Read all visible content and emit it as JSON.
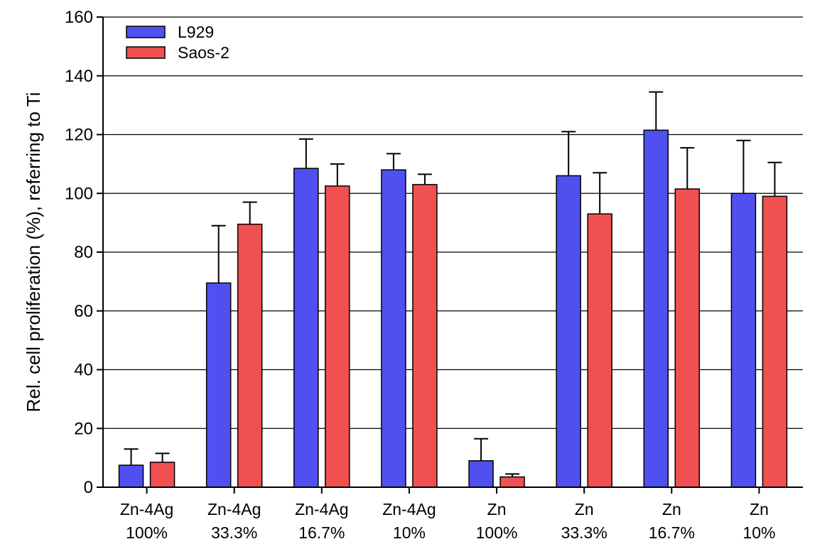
{
  "chart_data": {
    "type": "bar",
    "title": "",
    "xlabel": "",
    "ylabel": "Rel. cell proliferation  (%), referring to Ti",
    "ylim": [
      0,
      160
    ],
    "yticks": [
      0,
      20,
      40,
      60,
      80,
      100,
      120,
      140,
      160
    ],
    "grid": true,
    "legend_position": "top-left",
    "categories": [
      {
        "line1": "Zn-4Ag",
        "line2": "100%"
      },
      {
        "line1": "Zn-4Ag",
        "line2": "33.3%"
      },
      {
        "line1": "Zn-4Ag",
        "line2": "16.7%"
      },
      {
        "line1": "Zn-4Ag",
        "line2": "10%"
      },
      {
        "line1": "Zn",
        "line2": "100%"
      },
      {
        "line1": "Zn",
        "line2": "33.3%"
      },
      {
        "line1": "Zn",
        "line2": "16.7%"
      },
      {
        "line1": "Zn",
        "line2": "10%"
      }
    ],
    "series": [
      {
        "name": "L929",
        "color": "#5050F0",
        "values": [
          7.5,
          69.5,
          108.5,
          108,
          9,
          106,
          121.5,
          100
        ],
        "errors": [
          5.5,
          19.5,
          10,
          5.5,
          7.5,
          15,
          13,
          18
        ]
      },
      {
        "name": "Saos-2",
        "color": "#F05050",
        "values": [
          8.5,
          89.5,
          102.5,
          103,
          3.5,
          93,
          101.5,
          99
        ],
        "errors": [
          3,
          7.5,
          7.5,
          3.5,
          1,
          14,
          14,
          11.5
        ]
      }
    ]
  }
}
